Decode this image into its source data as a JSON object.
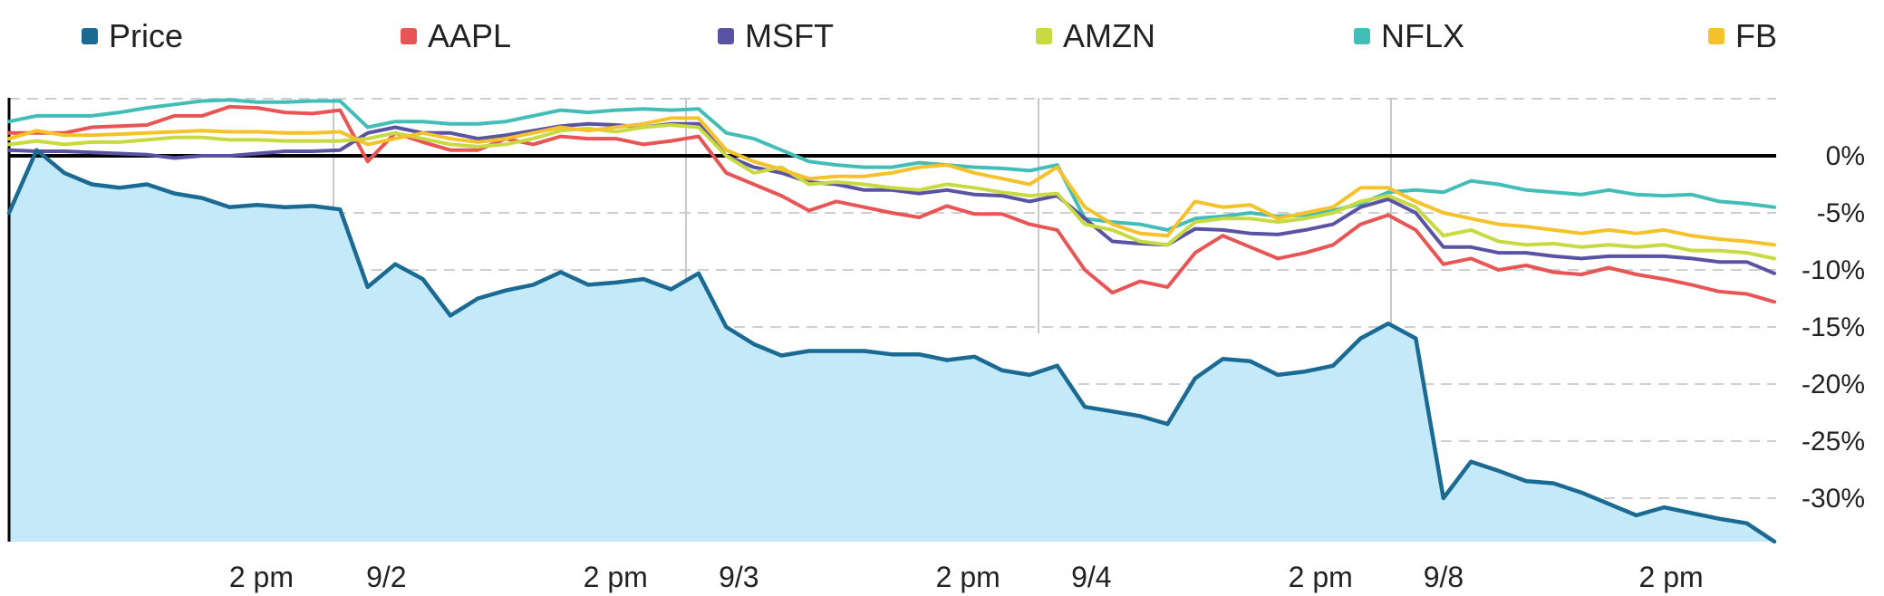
{
  "chart_data": {
    "type": "line",
    "legend": {
      "position": "top"
    },
    "yunit": "%",
    "ylim": [
      -34,
      5
    ],
    "yticks": [
      0,
      -5,
      -10,
      -15,
      -20,
      -25,
      -30
    ],
    "ytick_labels": [
      "0%",
      "-5%",
      "-10%",
      "-15%",
      "-20%",
      "-25%",
      "-30%"
    ],
    "xlim": [
      0,
      100
    ],
    "xtick_labels": [
      {
        "x": 14,
        "label": "2 pm"
      },
      {
        "x": 21,
        "label": "9/2"
      },
      {
        "x": 34,
        "label": "2 pm"
      },
      {
        "x": 41,
        "label": "9/3"
      },
      {
        "x": 54,
        "label": "2 pm"
      },
      {
        "x": 61,
        "label": "9/4"
      },
      {
        "x": 74,
        "label": "2 pm"
      },
      {
        "x": 81,
        "label": "9/8"
      },
      {
        "x": 94,
        "label": "2 pm"
      }
    ],
    "day_separators": [
      18,
      38,
      58,
      78
    ],
    "series": [
      {
        "name": "Price",
        "color": "#1a6a93",
        "fill": "#c4eaf9",
        "values": [
          -5.0,
          0.5,
          -1.5,
          -2.5,
          -2.8,
          -2.5,
          -3.3,
          -3.7,
          -4.5,
          -4.3,
          -4.5,
          -4.4,
          -4.7,
          -11.5,
          -9.5,
          -10.8,
          -14.0,
          -12.5,
          -11.8,
          -11.3,
          -10.2,
          -11.3,
          -11.1,
          -10.8,
          -11.7,
          -10.3,
          -15.0,
          -16.5,
          -17.5,
          -17.1,
          -17.1,
          -17.1,
          -17.4,
          -17.4,
          -17.9,
          -17.6,
          -18.8,
          -19.2,
          -18.4,
          -22.0,
          -22.4,
          -22.8,
          -23.5,
          -19.5,
          -17.8,
          -18.0,
          -19.2,
          -18.9,
          -18.4,
          -16.0,
          -14.7,
          -16.0,
          -30.0,
          -26.8,
          -27.6,
          -28.5,
          -28.7,
          -29.5,
          -30.5,
          -31.5,
          -30.8,
          -31.3,
          -31.8,
          -32.2,
          -33.8
        ]
      },
      {
        "name": "AAPL",
        "color": "#e85555",
        "values": [
          2.0,
          2.0,
          2.0,
          2.5,
          2.6,
          2.7,
          3.5,
          3.5,
          4.3,
          4.2,
          3.8,
          3.7,
          4.0,
          -0.5,
          2.0,
          1.2,
          0.5,
          0.5,
          1.5,
          1.0,
          1.7,
          1.5,
          1.5,
          1.0,
          1.3,
          1.7,
          -1.5,
          -2.5,
          -3.5,
          -4.8,
          -4.0,
          -4.5,
          -5.0,
          -5.4,
          -4.4,
          -5.1,
          -5.1,
          -6.0,
          -6.5,
          -10.0,
          -12.0,
          -11.0,
          -11.5,
          -8.5,
          -7.0,
          -8.0,
          -9.0,
          -8.5,
          -7.8,
          -6.0,
          -5.2,
          -6.5,
          -9.5,
          -9.0,
          -10.0,
          -9.6,
          -10.2,
          -10.4,
          -9.8,
          -10.4,
          -10.8,
          -11.3,
          -11.9,
          -12.1,
          -12.8
        ]
      },
      {
        "name": "MSFT",
        "color": "#5a52a3",
        "values": [
          0.5,
          0.4,
          0.4,
          0.3,
          0.2,
          0.1,
          -0.2,
          0.0,
          0.0,
          0.2,
          0.4,
          0.4,
          0.5,
          2.0,
          2.5,
          2.0,
          2.0,
          1.5,
          1.8,
          2.2,
          2.6,
          2.8,
          2.7,
          2.5,
          2.8,
          2.8,
          0.0,
          -1.0,
          -1.5,
          -2.3,
          -2.5,
          -3.0,
          -3.0,
          -3.3,
          -3.0,
          -3.4,
          -3.5,
          -4.0,
          -3.5,
          -5.5,
          -7.5,
          -7.7,
          -7.8,
          -6.4,
          -6.5,
          -6.8,
          -6.9,
          -6.5,
          -6.0,
          -4.5,
          -3.8,
          -5.0,
          -8.0,
          -8.0,
          -8.5,
          -8.5,
          -8.8,
          -9.0,
          -8.8,
          -8.8,
          -8.8,
          -9.0,
          -9.3,
          -9.3,
          -10.3
        ]
      },
      {
        "name": "AMZN",
        "color": "#c8da42",
        "values": [
          1.0,
          1.3,
          1.0,
          1.2,
          1.2,
          1.4,
          1.6,
          1.6,
          1.4,
          1.4,
          1.3,
          1.3,
          1.3,
          1.5,
          2.0,
          1.5,
          1.0,
          0.8,
          1.0,
          1.5,
          2.2,
          2.4,
          2.1,
          2.5,
          2.7,
          2.5,
          0.0,
          -1.5,
          -1.0,
          -2.5,
          -2.3,
          -2.5,
          -2.8,
          -3.0,
          -2.5,
          -2.8,
          -3.2,
          -3.5,
          -3.3,
          -6.0,
          -6.5,
          -7.5,
          -7.8,
          -5.8,
          -5.5,
          -5.5,
          -5.8,
          -5.5,
          -5.0,
          -4.0,
          -3.5,
          -4.5,
          -7.0,
          -6.5,
          -7.5,
          -7.8,
          -7.7,
          -8.0,
          -7.8,
          -8.0,
          -7.8,
          -8.3,
          -8.3,
          -8.5,
          -9.0
        ]
      },
      {
        "name": "NFLX",
        "color": "#43bdb8",
        "values": [
          3.0,
          3.5,
          3.5,
          3.5,
          3.8,
          4.2,
          4.5,
          4.8,
          4.9,
          4.7,
          4.7,
          4.8,
          4.8,
          2.5,
          3.0,
          3.0,
          2.8,
          2.8,
          3.0,
          3.5,
          4.0,
          3.8,
          4.0,
          4.1,
          4.0,
          4.1,
          2.0,
          1.5,
          0.5,
          -0.5,
          -0.8,
          -1.0,
          -1.0,
          -0.6,
          -0.8,
          -1.0,
          -1.1,
          -1.3,
          -0.8,
          -5.5,
          -5.8,
          -6.0,
          -6.5,
          -5.5,
          -5.3,
          -5.0,
          -5.3,
          -5.2,
          -4.8,
          -4.2,
          -3.2,
          -3.0,
          -3.2,
          -2.2,
          -2.5,
          -3.0,
          -3.2,
          -3.4,
          -3.0,
          -3.4,
          -3.5,
          -3.4,
          -4.0,
          -4.2,
          -4.5
        ]
      },
      {
        "name": "FB",
        "color": "#f5c22b",
        "values": [
          1.5,
          2.2,
          1.8,
          1.8,
          1.9,
          2.0,
          2.1,
          2.2,
          2.1,
          2.1,
          2.0,
          2.0,
          2.1,
          1.0,
          1.5,
          2.0,
          1.5,
          1.2,
          1.5,
          2.0,
          2.5,
          2.2,
          2.5,
          2.8,
          3.3,
          3.3,
          0.5,
          -0.5,
          -1.2,
          -2.0,
          -1.8,
          -1.8,
          -1.5,
          -1.0,
          -0.8,
          -1.5,
          -2.0,
          -2.5,
          -1.0,
          -4.5,
          -6.0,
          -6.8,
          -7.0,
          -4.0,
          -4.5,
          -4.3,
          -5.5,
          -5.0,
          -4.5,
          -2.8,
          -2.8,
          -4.0,
          -5.0,
          -5.5,
          -6.0,
          -6.2,
          -6.5,
          -6.8,
          -6.5,
          -6.8,
          -6.5,
          -7.0,
          -7.3,
          -7.5,
          -7.8
        ]
      }
    ]
  }
}
